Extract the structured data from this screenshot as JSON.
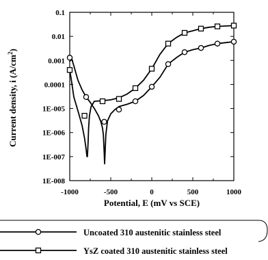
{
  "chart_data": {
    "type": "line",
    "xlabel": "Potential, E (mV vs SCE)",
    "ylabel": "Current density, i (A/cm",
    "ylabel_sup": "2",
    "ylabel_end": ")",
    "xlim": [
      -1000,
      1000
    ],
    "ylim": [
      1e-08,
      0.1
    ],
    "yscale": "log",
    "grid": false,
    "legend_position": "bottom",
    "x_ticks": [
      -1000,
      -500,
      0,
      500,
      1000
    ],
    "x_tick_labels": [
      "-1000",
      "-500",
      "0",
      "500",
      "1000"
    ],
    "y_ticks": [
      1e-08,
      1e-07,
      1e-06,
      1e-05,
      0.0001,
      0.001,
      0.01,
      0.1
    ],
    "y_tick_labels": [
      "1E-008",
      "1E-007",
      "1E-006",
      "1E-005",
      "0.0001",
      "0.001",
      "0.01",
      "0.1"
    ],
    "series": [
      {
        "name": "Uncoated 310 austenitic stainless steel",
        "marker": "circle",
        "x": [
          -1000,
          -980,
          -950,
          -900,
          -850,
          -800,
          -750,
          -700,
          -650,
          -620,
          -600,
          -590,
          -580,
          -575,
          -570,
          -560,
          -540,
          -500,
          -450,
          -400,
          -300,
          -200,
          -100,
          0,
          100,
          200,
          300,
          400,
          500,
          600,
          700,
          800,
          900,
          1000
        ],
        "y": [
          0.0009,
          0.0013,
          0.0006,
          0.00015,
          6e-05,
          3e-05,
          1.8e-05,
          1e-05,
          5e-06,
          2.8e-06,
          1.5e-06,
          8e-07,
          1.5e-07,
          5e-08,
          1.2e-07,
          8e-07,
          3e-06,
          6e-06,
          9e-06,
          1.2e-05,
          1.5e-05,
          2e-05,
          3.5e-05,
          8e-05,
          0.0002,
          0.0007,
          0.0013,
          0.0022,
          0.0028,
          0.0033,
          0.0042,
          0.005,
          0.0055,
          0.006
        ]
      },
      {
        "name": "YsZ coated 310 austenitic stainless steel",
        "marker": "square",
        "x": [
          -1000,
          -980,
          -950,
          -900,
          -850,
          -820,
          -800,
          -790,
          -785,
          -780,
          -775,
          -770,
          -760,
          -740,
          -700,
          -600,
          -500,
          -400,
          -300,
          -200,
          -100,
          0,
          50,
          100,
          200,
          300,
          400,
          500,
          600,
          700,
          800,
          900,
          1000
        ],
        "y": [
          0.0004,
          0.00015,
          3e-05,
          8e-06,
          2e-06,
          6e-07,
          2e-07,
          1e-07,
          1e-07,
          2e-07,
          5e-07,
          1.5e-06,
          5e-06,
          1.2e-05,
          2e-05,
          2.1e-05,
          2.3e-05,
          2.8e-05,
          4e-05,
          7e-05,
          0.00015,
          0.00045,
          0.0009,
          0.0018,
          0.005,
          0.009,
          0.014,
          0.017,
          0.021,
          0.024,
          0.026,
          0.027,
          0.028
        ]
      }
    ],
    "marker_points": [
      {
        "series": 0,
        "x": [
          -1000,
          -800,
          -580,
          -400,
          -200,
          0,
          200,
          400,
          600,
          800,
          1000
        ],
        "y": [
          0.0013,
          3e-05,
          2.8e-06,
          9e-06,
          2e-05,
          8e-05,
          0.0007,
          0.0022,
          0.0033,
          0.005,
          0.006
        ]
      },
      {
        "series": 1,
        "x": [
          -1000,
          -820,
          -600,
          -400,
          -200,
          0,
          200,
          400,
          600,
          800,
          1000
        ],
        "y": [
          0.0004,
          5e-06,
          2e-05,
          2.5e-05,
          7e-05,
          0.00045,
          0.005,
          0.014,
          0.021,
          0.026,
          0.028
        ]
      }
    ]
  }
}
